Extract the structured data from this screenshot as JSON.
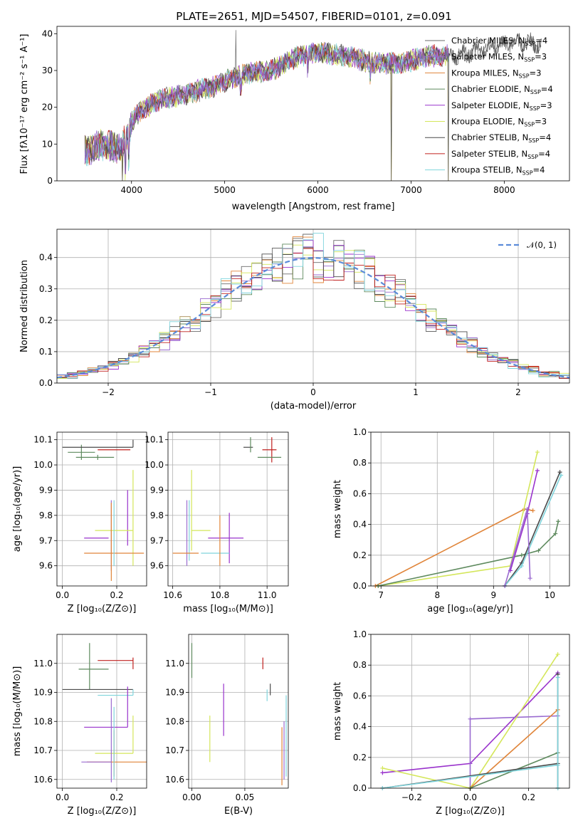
{
  "colors": {
    "series": [
      "#6b6b6b",
      "#9a6bd0",
      "#e0853a",
      "#5e8a5e",
      "#9932cc",
      "#d4e65a",
      "#4a4a4a",
      "#c0201e",
      "#7fd4dc"
    ]
  },
  "spectrum": {
    "title": "PLATE=2651, MJD=54507, FIBERID=0101, z=0.091",
    "xlabel": "wavelength [Angstrom, rest frame]",
    "ylabel": "Flux [fλ10⁻¹⁷ erg cm⁻² s⁻¹ A⁻¹]",
    "xlim": [
      3200,
      8700
    ],
    "ylim": [
      0,
      42
    ],
    "xticks": [
      "4000",
      "5000",
      "6000",
      "7000",
      "8000"
    ],
    "xtick_values": [
      4000,
      5000,
      6000,
      7000,
      8000
    ],
    "yticks": [
      "0",
      "10",
      "20",
      "30",
      "40"
    ],
    "ytick_values": [
      0,
      10,
      20,
      30,
      40
    ],
    "legend": [
      {
        "base": "Chabrier MILES, N",
        "sub": "SSP",
        "tail": "=4"
      },
      {
        "base": "Salpeter MILES, N",
        "sub": "SSP",
        "tail": "=3"
      },
      {
        "base": "Kroupa MILES, N",
        "sub": "SSP",
        "tail": "=3"
      },
      {
        "base": "Chabrier ELODIE, N",
        "sub": "SSP",
        "tail": "=4"
      },
      {
        "base": "Salpeter ELODIE, N",
        "sub": "SSP",
        "tail": "=3"
      },
      {
        "base": "Kroupa ELODIE, N",
        "sub": "SSP",
        "tail": "=3"
      },
      {
        "base": "Chabrier STELIB, N",
        "sub": "SSP",
        "tail": "=4"
      },
      {
        "base": "Salpeter STELIB, N",
        "sub": "SSP",
        "tail": "=4"
      },
      {
        "base": "Kroupa STELIB, N",
        "sub": "SSP",
        "tail": "=4"
      }
    ]
  },
  "chart_data": [
    {
      "type": "line",
      "title": "PLATE=2651, MJD=54507, FIBERID=0101, z=0.091",
      "x_range": [
        3500,
        8400
      ],
      "anchors": {
        "x": [
          3500,
          3700,
          3900,
          4000,
          4100,
          4300,
          4500,
          4800,
          5000,
          5200,
          5500,
          5800,
          6000,
          6300,
          6600,
          6900,
          7200,
          7500,
          7800,
          8100,
          8400
        ],
        "y": [
          8,
          10,
          9,
          16,
          19,
          22,
          23,
          25,
          27,
          29,
          30,
          34,
          35,
          34,
          32,
          32,
          34,
          34,
          36,
          38,
          37
        ]
      },
      "drops": [
        {
          "x": 3900,
          "to": 0
        },
        {
          "x": 6790,
          "to": 0
        },
        {
          "x": 7400,
          "to": 0
        }
      ]
    },
    {
      "type": "step",
      "xlabel": "(data-model)/error",
      "ylabel": "Normed distribution",
      "xlim": [
        -2.5,
        2.5
      ],
      "ylim": [
        0,
        0.49
      ],
      "xticks": [
        "−2",
        "−1",
        "0",
        "1",
        "2"
      ],
      "xtick_values": [
        -2,
        -1,
        0,
        1,
        2
      ],
      "yticks": [
        "0.0",
        "0.1",
        "0.2",
        "0.3",
        "0.4"
      ],
      "ytick_values": [
        0,
        0.1,
        0.2,
        0.3,
        0.4
      ],
      "legend": "𝒩(0, 1)",
      "bin_width": 0.1,
      "gaussian": {
        "mu": 0,
        "sigma": 1
      }
    },
    {
      "type": "errorbar",
      "xlabel": "Z [log₁₀(Z/Z⊙)]",
      "ylabel": "age  [log₁₀(age/yr)]",
      "xlim": [
        -0.02,
        0.31
      ],
      "ylim": [
        9.52,
        10.13
      ],
      "xticks": [
        "0.0",
        "0.2"
      ],
      "xtick_values": [
        0,
        0.2
      ],
      "yticks": [
        "9.6",
        "9.7",
        "9.8",
        "9.9",
        "10.0",
        "10.1"
      ],
      "ytick_values": [
        9.6,
        9.7,
        9.8,
        9.9,
        10.0,
        10.1
      ],
      "points": [
        {
          "c": 3,
          "x": 0.07,
          "xe": [
            0.05,
            0.05
          ],
          "y": 10.05,
          "ye": [
            0.03,
            0.03
          ]
        },
        {
          "c": 3,
          "x": 0.13,
          "xe": [
            0.08,
            0.06
          ],
          "y": 10.03,
          "ye": [
            0.01,
            0.01
          ]
        },
        {
          "c": 7,
          "x": 0.25,
          "xe": [
            0.12,
            0.0
          ],
          "y": 10.06,
          "ye": [
            0.0,
            0.0
          ]
        },
        {
          "c": 6,
          "x": 0.26,
          "xe": [
            0.26,
            0.0
          ],
          "y": 10.07,
          "ye": [
            0.0,
            0.03
          ]
        },
        {
          "c": 4,
          "x": 0.24,
          "xe": [
            0.0,
            0.0
          ],
          "y": 9.8,
          "ye": [
            0.12,
            0.1
          ]
        },
        {
          "c": 5,
          "x": 0.26,
          "xe": [
            0.14,
            0.0
          ],
          "y": 9.74,
          "ye": [
            0.14,
            0.24
          ]
        },
        {
          "c": 4,
          "x": 0.17,
          "xe": [
            0.09,
            0.0
          ],
          "y": 9.71,
          "ye": [
            0.0,
            0.0
          ]
        },
        {
          "c": 1,
          "x": 0.18,
          "xe": [
            0.0,
            0.0
          ],
          "y": 9.72,
          "ye": [
            0.14,
            0.14
          ]
        },
        {
          "c": 2,
          "x": 0.18,
          "xe": [
            0.0,
            0.0
          ],
          "y": 9.7,
          "ye": [
            0.16,
            0.15
          ]
        },
        {
          "c": 2,
          "x": 0.18,
          "xe": [
            0.1,
            0.12
          ],
          "y": 9.65,
          "ye": [
            0.0,
            0.0
          ]
        },
        {
          "c": 8,
          "x": 0.19,
          "xe": [
            0.0,
            0.0
          ],
          "y": 9.68,
          "ye": [
            0.08,
            0.18
          ]
        }
      ]
    },
    {
      "type": "errorbar",
      "xlabel": "mass [log₁₀(M/M⊙)]",
      "xlim": [
        10.58,
        11.09
      ],
      "ylim": [
        9.52,
        10.13
      ],
      "xticks": [
        "10.6",
        "10.8",
        "11.0"
      ],
      "xtick_values": [
        10.6,
        10.8,
        11.0
      ],
      "yticks": [
        "9.6",
        "9.7",
        "9.8",
        "9.9",
        "10.0",
        "10.1"
      ],
      "ytick_values": [
        9.6,
        9.7,
        9.8,
        9.9,
        10.0,
        10.1
      ],
      "points": [
        {
          "c": 6,
          "x": 10.92,
          "xe": [
            0.02,
            0.02
          ],
          "y": 10.07,
          "ye": [
            0.0,
            0.0
          ]
        },
        {
          "c": 3,
          "x": 10.93,
          "xe": [
            0.0,
            0.0
          ],
          "y": 10.07,
          "ye": [
            0.02,
            0.04
          ]
        },
        {
          "c": 7,
          "x": 11.02,
          "xe": [
            0.04,
            0.02
          ],
          "y": 10.06,
          "ye": [
            0.05,
            0.05
          ]
        },
        {
          "c": 3,
          "x": 11.02,
          "xe": [
            0.06,
            0.04
          ],
          "y": 10.03,
          "ye": [
            0.0,
            0.0
          ]
        },
        {
          "c": 4,
          "x": 10.84,
          "xe": [
            0.09,
            0.06
          ],
          "y": 9.71,
          "ye": [
            0.1,
            0.1
          ]
        },
        {
          "c": 5,
          "x": 10.68,
          "xe": [
            0.0,
            0.0
          ],
          "y": 9.74,
          "ye": [
            0.08,
            0.24
          ]
        },
        {
          "c": 5,
          "x": 10.72,
          "xe": [
            0.04,
            0.04
          ],
          "y": 9.74,
          "ye": [
            0.0,
            0.0
          ]
        },
        {
          "c": 1,
          "x": 10.66,
          "xe": [
            0.0,
            0.0
          ],
          "y": 9.72,
          "ye": [
            0.12,
            0.14
          ]
        },
        {
          "c": 8,
          "x": 10.67,
          "xe": [
            0.0,
            0.0
          ],
          "y": 9.74,
          "ye": [
            0.12,
            0.12
          ]
        },
        {
          "c": 2,
          "x": 10.65,
          "xe": [
            0.05,
            0.06
          ],
          "y": 9.65,
          "ye": [
            0.0,
            0.0
          ]
        },
        {
          "c": 8,
          "x": 10.78,
          "xe": [
            0.06,
            0.06
          ],
          "y": 9.65,
          "ye": [
            0.0,
            0.0
          ]
        },
        {
          "c": 2,
          "x": 10.8,
          "xe": [
            0.0,
            0.0
          ],
          "y": 9.7,
          "ye": [
            0.1,
            0.1
          ]
        }
      ]
    },
    {
      "type": "line",
      "xlabel": "age  [log₁₀(age/yr)]",
      "ylabel": "mass weight",
      "xlim": [
        6.82,
        10.35
      ],
      "ylim": [
        0,
        1.0
      ],
      "xticks": [
        "7",
        "8",
        "9",
        "10"
      ],
      "xtick_values": [
        7,
        8,
        9,
        10
      ],
      "yticks": [
        "0.0",
        "0.2",
        "0.4",
        "0.6",
        "0.8",
        "1.0"
      ],
      "ytick_values": [
        0,
        0.2,
        0.4,
        0.6,
        0.8,
        1.0
      ],
      "lines": [
        {
          "c": 2,
          "x": [
            6.9,
            9.55,
            9.7
          ],
          "y": [
            0.0,
            0.5,
            0.49
          ]
        },
        {
          "c": 5,
          "x": [
            6.95,
            9.3,
            9.78
          ],
          "y": [
            0.0,
            0.13,
            0.87
          ]
        },
        {
          "c": 3,
          "x": [
            6.95,
            9.5,
            9.8,
            10.1,
            10.15
          ],
          "y": [
            0.0,
            0.2,
            0.23,
            0.34,
            0.42
          ]
        },
        {
          "c": 4,
          "x": [
            9.3,
            9.6,
            9.78
          ],
          "y": [
            0.1,
            0.47,
            0.75
          ]
        },
        {
          "c": 6,
          "x": [
            9.2,
            9.5,
            10.18
          ],
          "y": [
            0.0,
            0.15,
            0.74
          ]
        },
        {
          "c": 8,
          "x": [
            9.2,
            9.5,
            10.2
          ],
          "y": [
            0.0,
            0.13,
            0.72
          ]
        },
        {
          "c": 1,
          "x": [
            9.2,
            9.6,
            9.65
          ],
          "y": [
            0.0,
            0.5,
            0.05
          ]
        }
      ]
    },
    {
      "type": "errorbar",
      "xlabel": "Z [log₁₀(Z/Z⊙)]",
      "ylabel": "mass [log₁₀(M/M⊙)]",
      "xlim": [
        -0.02,
        0.31
      ],
      "ylim": [
        10.57,
        11.1
      ],
      "xticks": [
        "0.0",
        "0.2"
      ],
      "xtick_values": [
        0,
        0.2
      ],
      "yticks": [
        "10.6",
        "10.7",
        "10.8",
        "10.9",
        "11.0"
      ],
      "ytick_values": [
        10.6,
        10.7,
        10.8,
        10.9,
        11.0
      ],
      "points": [
        {
          "c": 3,
          "x": 0.1,
          "xe": [
            0.04,
            0.07
          ],
          "y": 10.98,
          "ye": [
            0.07,
            0.09
          ]
        },
        {
          "c": 7,
          "x": 0.22,
          "xe": [
            0.09,
            0.04
          ],
          "y": 11.01,
          "ye": [
            0.0,
            0.0
          ]
        },
        {
          "c": 7,
          "x": 0.26,
          "xe": [
            0.0,
            0.0
          ],
          "y": 11.0,
          "ye": [
            0.02,
            0.02
          ]
        },
        {
          "c": 6,
          "x": 0.26,
          "xe": [
            0.26,
            0.0
          ],
          "y": 10.91,
          "ye": [
            0.0,
            0.0
          ]
        },
        {
          "c": 8,
          "x": 0.2,
          "xe": [
            0.07,
            0.06
          ],
          "y": 10.89,
          "ye": [
            0.0,
            0.0
          ]
        },
        {
          "c": 8,
          "x": 0.26,
          "xe": [
            0.0,
            0.0
          ],
          "y": 10.89,
          "ye": [
            0.0,
            0.02
          ]
        },
        {
          "c": 4,
          "x": 0.24,
          "xe": [
            0.0,
            0.0
          ],
          "y": 10.85,
          "ye": [
            0.07,
            0.07
          ]
        },
        {
          "c": 4,
          "x": 0.17,
          "xe": [
            0.09,
            0.07
          ],
          "y": 10.78,
          "ye": [
            0.0,
            0.0
          ]
        },
        {
          "c": 5,
          "x": 0.26,
          "xe": [
            0.14,
            0.0
          ],
          "y": 10.69,
          "ye": [
            0.0,
            0.13
          ]
        },
        {
          "c": 1,
          "x": 0.18,
          "xe": [
            0.0,
            0.0
          ],
          "y": 10.75,
          "ye": [
            0.16,
            0.13
          ]
        },
        {
          "c": 2,
          "x": 0.19,
          "xe": [
            0.1,
            0.12
          ],
          "y": 10.66,
          "ye": [
            0.0,
            0.0
          ]
        },
        {
          "c": 2,
          "x": 0.19,
          "xe": [
            0.0,
            0.0
          ],
          "y": 10.7,
          "ye": [
            0.09,
            0.07
          ]
        },
        {
          "c": 8,
          "x": 0.19,
          "xe": [
            0.0,
            0.0
          ],
          "y": 10.65,
          "ye": [
            0.05,
            0.2
          ]
        },
        {
          "c": 1,
          "x": 0.12,
          "xe": [
            0.05,
            0.06
          ],
          "y": 10.66,
          "ye": [
            0.0,
            0.0
          ]
        }
      ]
    },
    {
      "type": "errorbar",
      "xlabel": "E(B-V)",
      "xlim": [
        -0.003,
        0.091
      ],
      "ylim": [
        10.57,
        11.1
      ],
      "xticks": [
        "0.00",
        "0.05"
      ],
      "xtick_values": [
        0,
        0.05
      ],
      "yticks": [
        "10.6",
        "10.7",
        "10.8",
        "10.9",
        "11.0"
      ],
      "ytick_values": [
        10.6,
        10.7,
        10.8,
        10.9,
        11.0
      ],
      "points": [
        {
          "c": 3,
          "x": 0.0,
          "xe": [
            0,
            0
          ],
          "y": 11.01,
          "ye": [
            0.06,
            0.06
          ]
        },
        {
          "c": 7,
          "x": 0.067,
          "xe": [
            0,
            0
          ],
          "y": 11.0,
          "ye": [
            0.02,
            0.02
          ]
        },
        {
          "c": 6,
          "x": 0.074,
          "xe": [
            0,
            0
          ],
          "y": 10.91,
          "ye": [
            0.02,
            0.02
          ]
        },
        {
          "c": 8,
          "x": 0.071,
          "xe": [
            0,
            0
          ],
          "y": 10.89,
          "ye": [
            0.02,
            0.02
          ]
        },
        {
          "c": 4,
          "x": 0.03,
          "xe": [
            0,
            0
          ],
          "y": 10.84,
          "ye": [
            0.09,
            0.09
          ]
        },
        {
          "c": 5,
          "x": 0.017,
          "xe": [
            0,
            0
          ],
          "y": 10.74,
          "ye": [
            0.08,
            0.08
          ]
        },
        {
          "c": 2,
          "x": 0.085,
          "xe": [
            0,
            0
          ],
          "y": 10.68,
          "ye": [
            0.1,
            0.1
          ]
        },
        {
          "c": 1,
          "x": 0.087,
          "xe": [
            0,
            0
          ],
          "y": 10.7,
          "ye": [
            0.1,
            0.1
          ]
        },
        {
          "c": 8,
          "x": 0.089,
          "xe": [
            0,
            0
          ],
          "y": 10.75,
          "ye": [
            0.14,
            0.14
          ]
        }
      ]
    },
    {
      "type": "line",
      "xlabel": "Z [log₁₀(Z/Z⊙)]",
      "ylabel": "mass weight",
      "xlim": [
        -0.34,
        0.34
      ],
      "ylim": [
        0,
        1.0
      ],
      "xticks": [
        "−0.2",
        "0.0",
        "0.2"
      ],
      "xtick_values": [
        -0.2,
        0,
        0.2
      ],
      "yticks": [
        "0.0",
        "0.2",
        "0.4",
        "0.6",
        "0.8",
        "1.0"
      ],
      "ytick_values": [
        0,
        0.2,
        0.4,
        0.6,
        0.8,
        1.0
      ],
      "lines": [
        {
          "c": 4,
          "x": [
            -0.3,
            0.0,
            0.3
          ],
          "y": [
            0.1,
            0.16,
            0.75
          ]
        },
        {
          "c": 1,
          "x": [
            0.0,
            0.0,
            0.3
          ],
          "y": [
            0.0,
            0.45,
            0.47
          ]
        },
        {
          "c": 5,
          "x": [
            -0.3,
            0.0,
            0.3
          ],
          "y": [
            0.13,
            0.0,
            0.87
          ]
        },
        {
          "c": 2,
          "x": [
            0.0,
            0.0,
            0.3
          ],
          "y": [
            0.0,
            0.0,
            0.51
          ]
        },
        {
          "c": 3,
          "x": [
            0.0,
            0.3
          ],
          "y": [
            0.0,
            0.23
          ]
        },
        {
          "c": 6,
          "x": [
            -0.3,
            0.3
          ],
          "y": [
            0.0,
            0.16
          ]
        },
        {
          "c": 8,
          "x": [
            -0.3,
            0.3
          ],
          "y": [
            0.0,
            0.15
          ]
        },
        {
          "c": 6,
          "x": [
            0.3,
            0.3
          ],
          "y": [
            0.0,
            0.74
          ]
        },
        {
          "c": 8,
          "x": [
            0.3,
            0.3
          ],
          "y": [
            0.0,
            0.72
          ]
        }
      ]
    }
  ]
}
